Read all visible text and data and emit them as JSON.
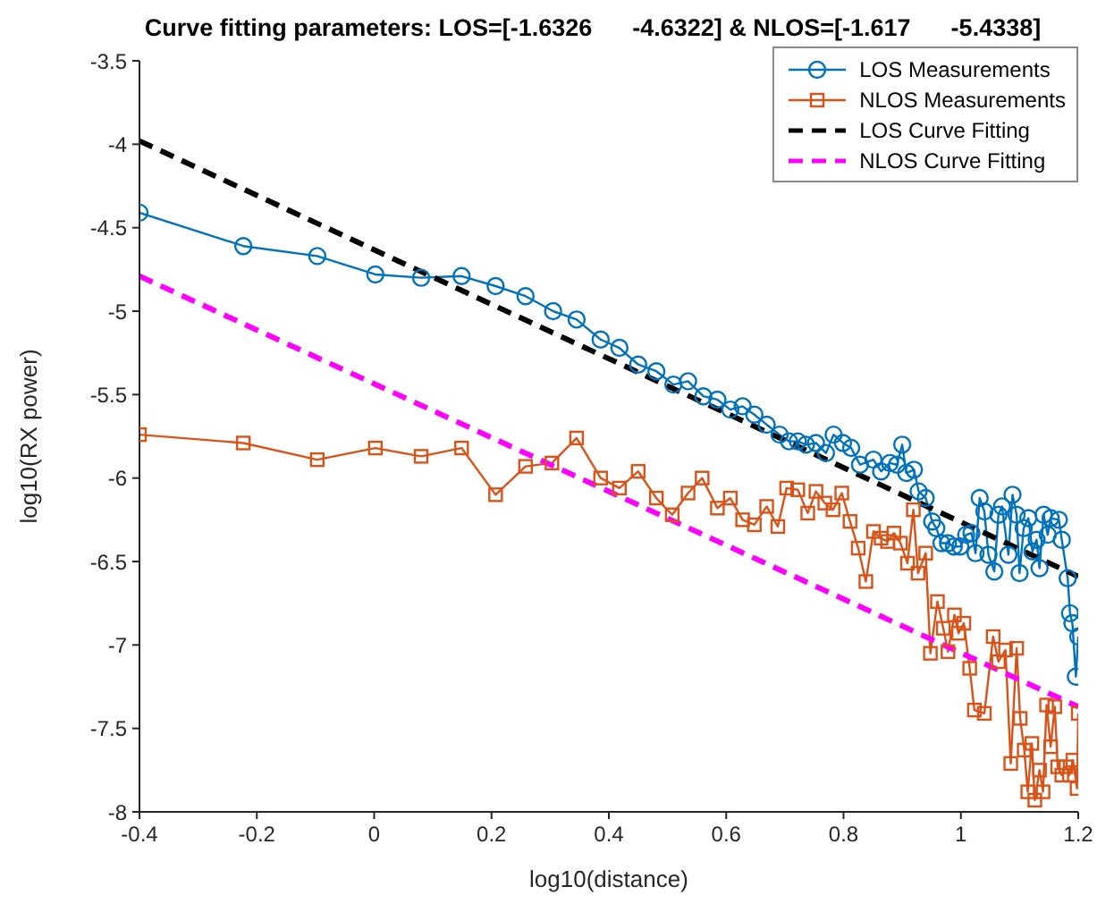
{
  "chart_data": {
    "type": "line",
    "title": "Curve fitting parameters: LOS=[-1.6326      -4.6322] & NLOS=[-1.617      -5.4338]",
    "xlabel": "log10(distance)",
    "ylabel": "log10(RX power)",
    "xlim": [
      -0.4,
      1.2
    ],
    "xticks": [
      -0.4,
      -0.2,
      0,
      0.2,
      0.4,
      0.6,
      0.8,
      1,
      1.2
    ],
    "ylim": [
      -8,
      -3.5
    ],
    "yticks": [
      -8,
      -7.5,
      -7,
      -6.5,
      -6,
      -5.5,
      -5,
      -4.5,
      -4,
      -3.5
    ],
    "grid": false,
    "legend": "top right",
    "series": [
      {
        "name": "LOS Measurements",
        "color": "#0072bd",
        "marker": "circle",
        "line_style": "solid",
        "x": [
          -0.4,
          -0.223,
          -0.097,
          0.002,
          0.08,
          0.149,
          0.207,
          0.258,
          0.305,
          0.345,
          0.386,
          0.418,
          0.45,
          0.481,
          0.51,
          0.535,
          0.561,
          0.585,
          0.607,
          0.628,
          0.648,
          0.669,
          0.691,
          0.707,
          0.722,
          0.736,
          0.753,
          0.77,
          0.783,
          0.799,
          0.813,
          0.828,
          0.851,
          0.864,
          0.879,
          0.891,
          0.9,
          0.907,
          0.92,
          0.928,
          0.94,
          0.951,
          0.958,
          0.967,
          0.978,
          0.988,
          0.999,
          1.009,
          1.018,
          1.025,
          1.032,
          1.04,
          1.047,
          1.057,
          1.064,
          1.07,
          1.081,
          1.088,
          1.095,
          1.1,
          1.107,
          1.115,
          1.122,
          1.129,
          1.134,
          1.141,
          1.148,
          1.153,
          1.167,
          1.172,
          1.182,
          1.186,
          1.19,
          1.196,
          1.2
        ],
        "values": [
          -4.41,
          -4.61,
          -4.67,
          -4.78,
          -4.8,
          -4.79,
          -4.85,
          -4.91,
          -5.0,
          -5.05,
          -5.17,
          -5.22,
          -5.32,
          -5.36,
          -5.44,
          -5.42,
          -5.51,
          -5.53,
          -5.59,
          -5.57,
          -5.62,
          -5.68,
          -5.74,
          -5.78,
          -5.78,
          -5.8,
          -5.79,
          -5.85,
          -5.74,
          -5.79,
          -5.82,
          -5.92,
          -5.89,
          -5.96,
          -5.91,
          -5.92,
          -5.8,
          -5.97,
          -5.95,
          -6.08,
          -6.12,
          -6.26,
          -6.3,
          -6.39,
          -6.39,
          -6.41,
          -6.41,
          -6.34,
          -6.33,
          -6.45,
          -6.12,
          -6.2,
          -6.46,
          -6.56,
          -6.22,
          -6.17,
          -6.46,
          -6.1,
          -6.22,
          -6.57,
          -6.3,
          -6.24,
          -6.44,
          -6.37,
          -6.54,
          -6.22,
          -6.34,
          -6.24,
          -6.25,
          -6.37,
          -6.6,
          -6.81,
          -6.87,
          -7.19,
          -6.95
        ]
      },
      {
        "name": "NLOS Measurements",
        "color": "#d95319",
        "marker": "square",
        "line_style": "solid",
        "x": [
          -0.4,
          -0.223,
          -0.097,
          0.002,
          0.08,
          0.149,
          0.207,
          0.258,
          0.303,
          0.345,
          0.386,
          0.418,
          0.45,
          0.481,
          0.508,
          0.535,
          0.559,
          0.585,
          0.607,
          0.628,
          0.648,
          0.669,
          0.688,
          0.703,
          0.722,
          0.739,
          0.753,
          0.768,
          0.782,
          0.797,
          0.811,
          0.825,
          0.838,
          0.851,
          0.864,
          0.875,
          0.886,
          0.897,
          0.909,
          0.919,
          0.927,
          0.94,
          0.948,
          0.96,
          0.97,
          0.978,
          0.989,
          0.996,
          1.005,
          1.015,
          1.023,
          1.04,
          1.055,
          1.064,
          1.076,
          1.085,
          1.095,
          1.101,
          1.108,
          1.114,
          1.121,
          1.126,
          1.134,
          1.14,
          1.146,
          1.153,
          1.16,
          1.165,
          1.172,
          1.179,
          1.185,
          1.191,
          1.198,
          1.2
        ],
        "values": [
          -5.74,
          -5.79,
          -5.89,
          -5.82,
          -5.87,
          -5.82,
          -6.1,
          -5.93,
          -5.91,
          -5.76,
          -6.0,
          -6.06,
          -5.96,
          -6.12,
          -6.22,
          -6.09,
          -6.0,
          -6.18,
          -6.12,
          -6.25,
          -6.28,
          -6.17,
          -6.29,
          -6.06,
          -6.07,
          -6.21,
          -6.08,
          -6.15,
          -6.19,
          -6.09,
          -6.26,
          -6.42,
          -6.62,
          -6.32,
          -6.36,
          -6.38,
          -6.33,
          -6.39,
          -6.51,
          -6.19,
          -6.57,
          -6.45,
          -7.05,
          -6.74,
          -6.9,
          -7.04,
          -6.82,
          -6.93,
          -6.87,
          -7.14,
          -7.39,
          -7.41,
          -6.95,
          -7.1,
          -7.03,
          -7.71,
          -7.02,
          -7.44,
          -7.63,
          -7.88,
          -7.59,
          -7.93,
          -7.75,
          -7.88,
          -7.36,
          -7.61,
          -7.37,
          -7.73,
          -7.78,
          -7.73,
          -7.78,
          -7.69,
          -7.86,
          -7.41
        ]
      },
      {
        "name": "LOS Curve Fitting",
        "color": "#000000",
        "marker": "none",
        "line_style": "dashed",
        "x": [
          -0.4,
          1.2
        ],
        "values": [
          -3.98,
          -6.59
        ]
      },
      {
        "name": "NLOS Curve Fitting",
        "color": "#ff00ff",
        "marker": "none",
        "line_style": "dashed",
        "x": [
          -0.4,
          1.2
        ],
        "values": [
          -4.79,
          -7.37
        ]
      }
    ]
  }
}
